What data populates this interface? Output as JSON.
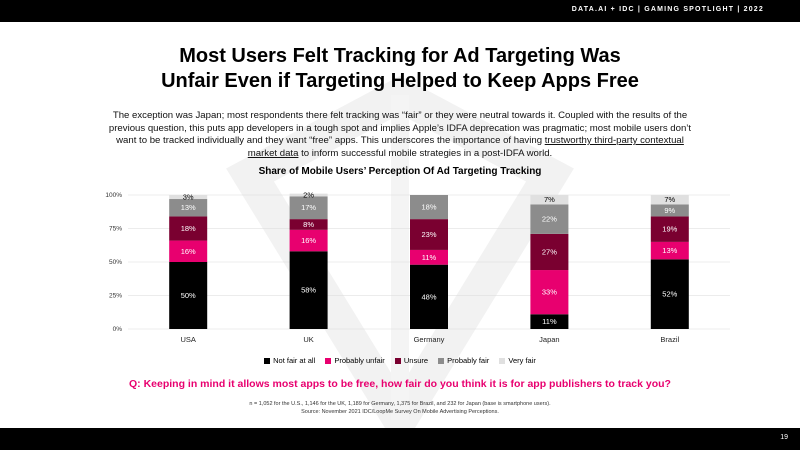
{
  "header": {
    "brand": "DATA.AI + IDC  |  GAMING SPOTLIGHT  |  2022"
  },
  "page_number": "19",
  "title_line1": "Most Users Felt Tracking for Ad Targeting Was",
  "title_line2": "Unfair Even if Targeting Helped to Keep Apps Free",
  "subtitle_before": "The exception was Japan; most respondents there felt tracking was “fair” or they were neutral towards it. Coupled with the results of the previous question, this puts app developers in a tough spot and implies Apple’s IDFA deprecation was pragmatic; most mobile users don’t want to be tracked individually and they want “free” apps. This underscores the importance of having ",
  "subtitle_link": "trustworthy third-party contextual market data",
  "subtitle_after": " to inform successful mobile strategies in a post-IDFA world.",
  "question": "Q: Keeping in mind it allows most apps to be free, how fair do you think it is for app publishers to track you?",
  "footnote_line1": "n = 1,052 for the U.S., 1,146 for the UK, 1,189 for Germany, 1,375 for Brazil, and 232 for Japan (base is smartphone users).",
  "footnote_line2": "Source: November 2021 IDC/LoopMe Survey On Mobile Advertising Perceptions.",
  "colors": {
    "accent": "#e8006f",
    "dark_red": "#7a0030",
    "black": "#000000",
    "gray": "#8c8c8c",
    "light_gray": "#e0e0e0"
  },
  "chart_data": {
    "type": "bar",
    "stacked": true,
    "title": "Share of Mobile Users’ Perception Of Ad Targeting Tracking",
    "categories": [
      "USA",
      "UK",
      "Germany",
      "Japan",
      "Brazil"
    ],
    "ylim": [
      0,
      100
    ],
    "yticks": [
      "0%",
      "25%",
      "50%",
      "75%",
      "100%"
    ],
    "grid": true,
    "legend_position": "bottom",
    "series": [
      {
        "name": "Not fair at all",
        "color": "#000000",
        "label_color": "#ffffff",
        "values": [
          50,
          58,
          48,
          11,
          52
        ],
        "labels": [
          "50%",
          "58%",
          "48%",
          "11%",
          "52%"
        ]
      },
      {
        "name": "Probably unfair",
        "color": "#e8006f",
        "label_color": "#ffffff",
        "values": [
          16,
          16,
          11,
          33,
          13
        ],
        "labels": [
          "16%",
          "16%",
          "11%",
          "33%",
          "13%"
        ]
      },
      {
        "name": "Unsure",
        "color": "#7a0030",
        "label_color": "#ffffff",
        "values": [
          18,
          8,
          23,
          27,
          19
        ],
        "labels": [
          "18%",
          "8%",
          "23%",
          "27%",
          "19%"
        ]
      },
      {
        "name": "Probably fair",
        "color": "#8c8c8c",
        "label_color": "#ffffff",
        "values": [
          13,
          17,
          18,
          22,
          9
        ],
        "labels": [
          "13%",
          "17%",
          "18%",
          "22%",
          "9%"
        ]
      },
      {
        "name": "Very fair",
        "color": "#e0e0e0",
        "label_color": "#000000",
        "values": [
          3,
          2,
          0,
          7,
          7
        ],
        "labels": [
          "3%",
          "2%",
          "",
          "7%",
          "7%"
        ]
      }
    ]
  }
}
